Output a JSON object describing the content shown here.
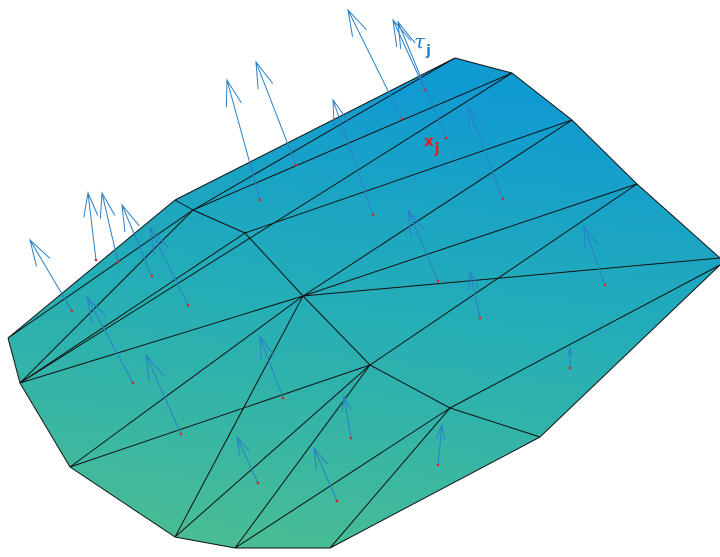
{
  "labels": {
    "tau": {
      "symbol": "τ",
      "subscript": "j"
    },
    "x": {
      "symbol": "x",
      "subscript": "j"
    }
  },
  "colors": {
    "arrow": "#2a7fc8",
    "point": "#e02020",
    "surface_top": "#109ad2",
    "surface_mid": "#25aeb6",
    "surface_bottom": "#47bc96",
    "tau_label": "#2a7fc8",
    "x_label": "#e02020"
  }
}
